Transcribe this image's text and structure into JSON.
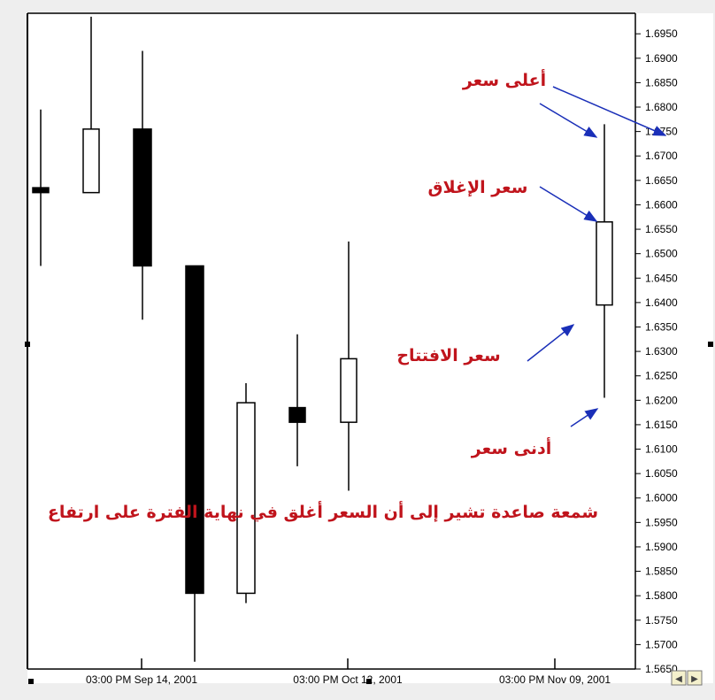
{
  "chart_data": {
    "type": "candlestick",
    "ylim": [
      1.565,
      1.6992
    ],
    "y_ticks": [
      "1.6950",
      "1.6900",
      "1.6850",
      "1.6800",
      "1.6750",
      "1.6700",
      "1.6650",
      "1.6600",
      "1.6550",
      "1.6500",
      "1.6450",
      "1.6400",
      "1.6350",
      "1.6300",
      "1.6250",
      "1.6200",
      "1.6150",
      "1.6100",
      "1.6050",
      "1.6000",
      "1.5950",
      "1.5900",
      "1.5850",
      "1.5800",
      "1.5750",
      "1.5700",
      "1.5650"
    ],
    "x_labels": [
      "03:00 PM Sep 14, 2001",
      "03:00 PM Oct 12, 2001",
      "03:00 PM Nov 09, 2001"
    ],
    "candles": [
      {
        "open": 1.6635,
        "high": 1.6795,
        "low": 1.6475,
        "close": 1.6625,
        "direction": "down"
      },
      {
        "open": 1.6625,
        "high": 1.6985,
        "low": 1.6625,
        "close": 1.6755,
        "direction": "up"
      },
      {
        "open": 1.6755,
        "high": 1.6915,
        "low": 1.6365,
        "close": 1.6475,
        "direction": "down"
      },
      {
        "open": 1.6475,
        "high": 1.6475,
        "low": 1.5665,
        "close": 1.5805,
        "direction": "down"
      },
      {
        "open": 1.5805,
        "high": 1.6235,
        "low": 1.5785,
        "close": 1.6195,
        "direction": "up"
      },
      {
        "open": 1.6185,
        "high": 1.6335,
        "low": 1.6065,
        "close": 1.6155,
        "direction": "down"
      },
      {
        "open": 1.6155,
        "high": 1.6525,
        "low": 1.6015,
        "close": 1.6285,
        "direction": "up"
      },
      {
        "open": 1.6395,
        "high": 1.6765,
        "low": 1.6205,
        "close": 1.6565,
        "direction": "up"
      }
    ],
    "annotations": {
      "high_price": "أعلى سعر",
      "close_price": "سعر الإغلاق",
      "open_price": "سعر الافتتاح",
      "low_price": "أدنى سعر",
      "caption": "شمعة صاعدة تشير إلى أن السعر أغلق في نهاية الفترة على ارتفاع"
    },
    "colors": {
      "up_candle": "#ffffff",
      "down_candle": "#000000",
      "annotation_text": "#c0141c",
      "arrow": "#1a2fb8"
    },
    "grid": false
  },
  "controls": {
    "scroll_left": "◀",
    "scroll_right": "▶"
  }
}
